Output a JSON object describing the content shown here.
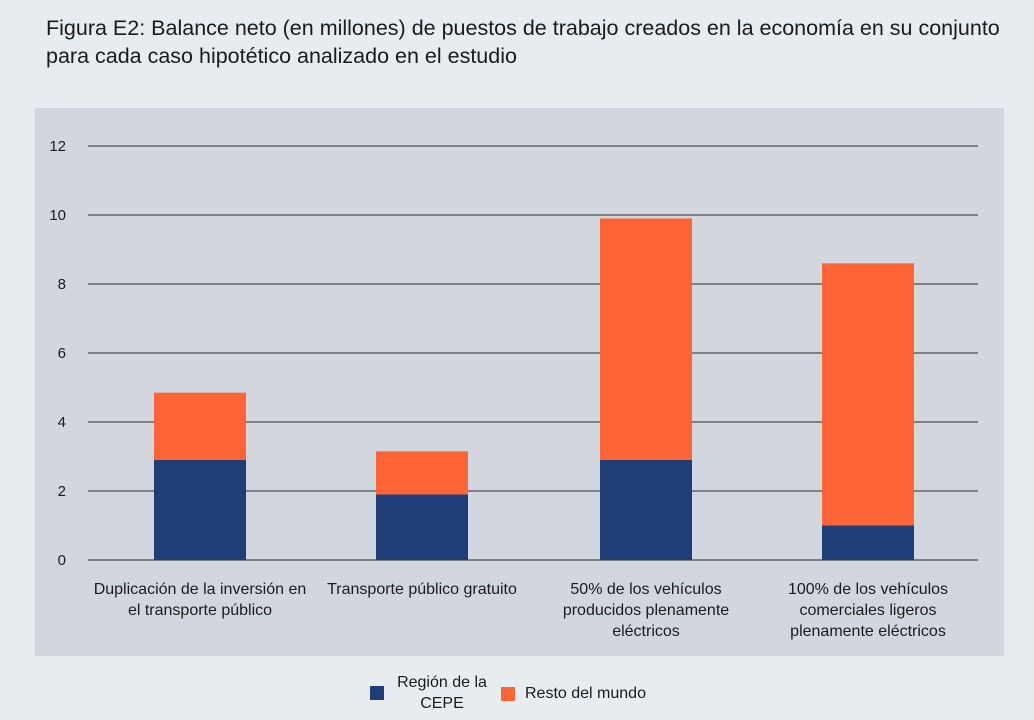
{
  "title": "Figura E2: Balance neto (en millones) de puestos de trabajo creados en la economía en su conjunto para cada caso hipotético analizado en el estudio",
  "colors": {
    "background": "#e7ecf0",
    "plot_background": "#d2d7df",
    "series_1": "#1f3e77",
    "series_2": "#ff6436",
    "gridline": "#2a2a2a"
  },
  "chart_data": {
    "type": "bar",
    "stacked": true,
    "title": "Figura E2: Balance neto (en millones) de puestos de trabajo creados en la economía en su conjunto para cada caso hipotético analizado en el estudio",
    "xlabel": "",
    "ylabel": "",
    "categories": [
      "Duplicación de la inversión en el transporte público",
      "Transporte público gratuito",
      "50% de los vehículos producidos plenamente eléctricos",
      "100% de los vehículos comerciales ligeros plenamente eléctricos"
    ],
    "series": [
      {
        "name": "Región de la CEPE",
        "color": "#1f3e77",
        "values": [
          2.9,
          1.9,
          2.9,
          1.0
        ]
      },
      {
        "name": "Resto del mundo",
        "color": "#ff6436",
        "values": [
          1.95,
          1.25,
          7.0,
          7.6
        ]
      }
    ],
    "ylim": [
      0,
      12
    ],
    "yticks": [
      0,
      2,
      4,
      6,
      8,
      10,
      12
    ],
    "grid": true,
    "legend_position": "bottom"
  },
  "legend": {
    "items": [
      {
        "label": "Región de la CEPE",
        "color": "#1f3e77"
      },
      {
        "label": "Resto del mundo",
        "color": "#ff6436"
      }
    ]
  }
}
